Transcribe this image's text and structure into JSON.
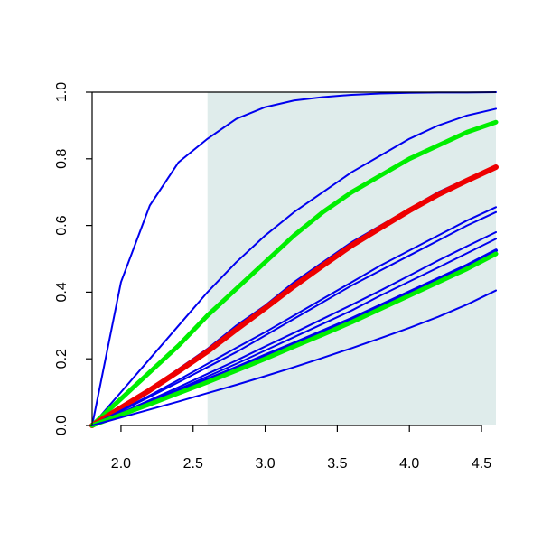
{
  "chart_data": {
    "type": "line",
    "title": "",
    "xlabel": "",
    "ylabel": "",
    "xlim": [
      1.8,
      4.6
    ],
    "ylim": [
      0.0,
      1.0
    ],
    "x_ticks": [
      "2.0",
      "2.5",
      "3.0",
      "3.5",
      "4.0",
      "4.5"
    ],
    "y_ticks": [
      "0.0",
      "0.2",
      "0.4",
      "0.6",
      "0.8",
      "1.0"
    ],
    "shaded_region": {
      "x": [
        2.6,
        4.6
      ],
      "color": "#dfeceb"
    },
    "grid": false,
    "x": [
      1.8,
      2.0,
      2.2,
      2.4,
      2.6,
      2.8,
      3.0,
      3.2,
      3.4,
      3.6,
      3.8,
      4.0,
      4.2,
      4.4,
      4.6
    ],
    "series": [
      {
        "color": "#0000ee",
        "width": 2,
        "values": [
          0.0,
          0.43,
          0.66,
          0.79,
          0.86,
          0.92,
          0.955,
          0.975,
          0.985,
          0.992,
          0.996,
          0.998,
          0.999,
          0.999,
          1.0
        ]
      },
      {
        "color": "#0000ee",
        "width": 2,
        "values": [
          0.0,
          0.1,
          0.2,
          0.3,
          0.4,
          0.49,
          0.57,
          0.64,
          0.7,
          0.76,
          0.81,
          0.86,
          0.9,
          0.93,
          0.95
        ]
      },
      {
        "color": "#00ee00",
        "width": 5,
        "values": [
          0.0,
          0.08,
          0.16,
          0.24,
          0.33,
          0.41,
          0.49,
          0.57,
          0.64,
          0.7,
          0.75,
          0.8,
          0.84,
          0.88,
          0.91
        ]
      },
      {
        "color": "#0000ee",
        "width": 2,
        "values": [
          0.0,
          0.055,
          0.11,
          0.17,
          0.23,
          0.3,
          0.36,
          0.43,
          0.49,
          0.55,
          0.6,
          0.65,
          0.7,
          0.74,
          0.78
        ]
      },
      {
        "color": "#ee0000",
        "width": 6,
        "values": [
          0.0,
          0.053,
          0.106,
          0.163,
          0.222,
          0.288,
          0.352,
          0.418,
          0.48,
          0.54,
          0.593,
          0.645,
          0.693,
          0.735,
          0.775
        ]
      },
      {
        "color": "#0000ee",
        "width": 2,
        "values": [
          0.0,
          0.045,
          0.09,
          0.137,
          0.185,
          0.233,
          0.28,
          0.33,
          0.38,
          0.43,
          0.48,
          0.525,
          0.57,
          0.615,
          0.655
        ]
      },
      {
        "color": "#0000ee",
        "width": 2,
        "values": [
          0.0,
          0.043,
          0.086,
          0.13,
          0.175,
          0.22,
          0.27,
          0.32,
          0.37,
          0.42,
          0.465,
          0.51,
          0.555,
          0.6,
          0.64
        ]
      },
      {
        "color": "#0000ee",
        "width": 2,
        "values": [
          0.0,
          0.038,
          0.076,
          0.115,
          0.155,
          0.195,
          0.237,
          0.278,
          0.32,
          0.362,
          0.405,
          0.45,
          0.495,
          0.538,
          0.58
        ]
      },
      {
        "color": "#0000ee",
        "width": 2,
        "values": [
          0.0,
          0.036,
          0.072,
          0.109,
          0.147,
          0.185,
          0.225,
          0.265,
          0.305,
          0.345,
          0.39,
          0.432,
          0.474,
          0.517,
          0.56
        ]
      },
      {
        "color": "#0000ee",
        "width": 4,
        "values": [
          0.0,
          0.034,
          0.068,
          0.103,
          0.138,
          0.173,
          0.21,
          0.246,
          0.283,
          0.32,
          0.36,
          0.4,
          0.44,
          0.48,
          0.525
        ]
      },
      {
        "color": "#00ee00",
        "width": 5,
        "values": [
          0.0,
          0.032,
          0.064,
          0.097,
          0.13,
          0.165,
          0.2,
          0.237,
          0.273,
          0.31,
          0.35,
          0.39,
          0.43,
          0.47,
          0.515
        ]
      },
      {
        "color": "#0000ee",
        "width": 2,
        "values": [
          0.0,
          0.024,
          0.048,
          0.072,
          0.097,
          0.122,
          0.148,
          0.175,
          0.203,
          0.232,
          0.262,
          0.293,
          0.326,
          0.363,
          0.405
        ]
      }
    ]
  }
}
